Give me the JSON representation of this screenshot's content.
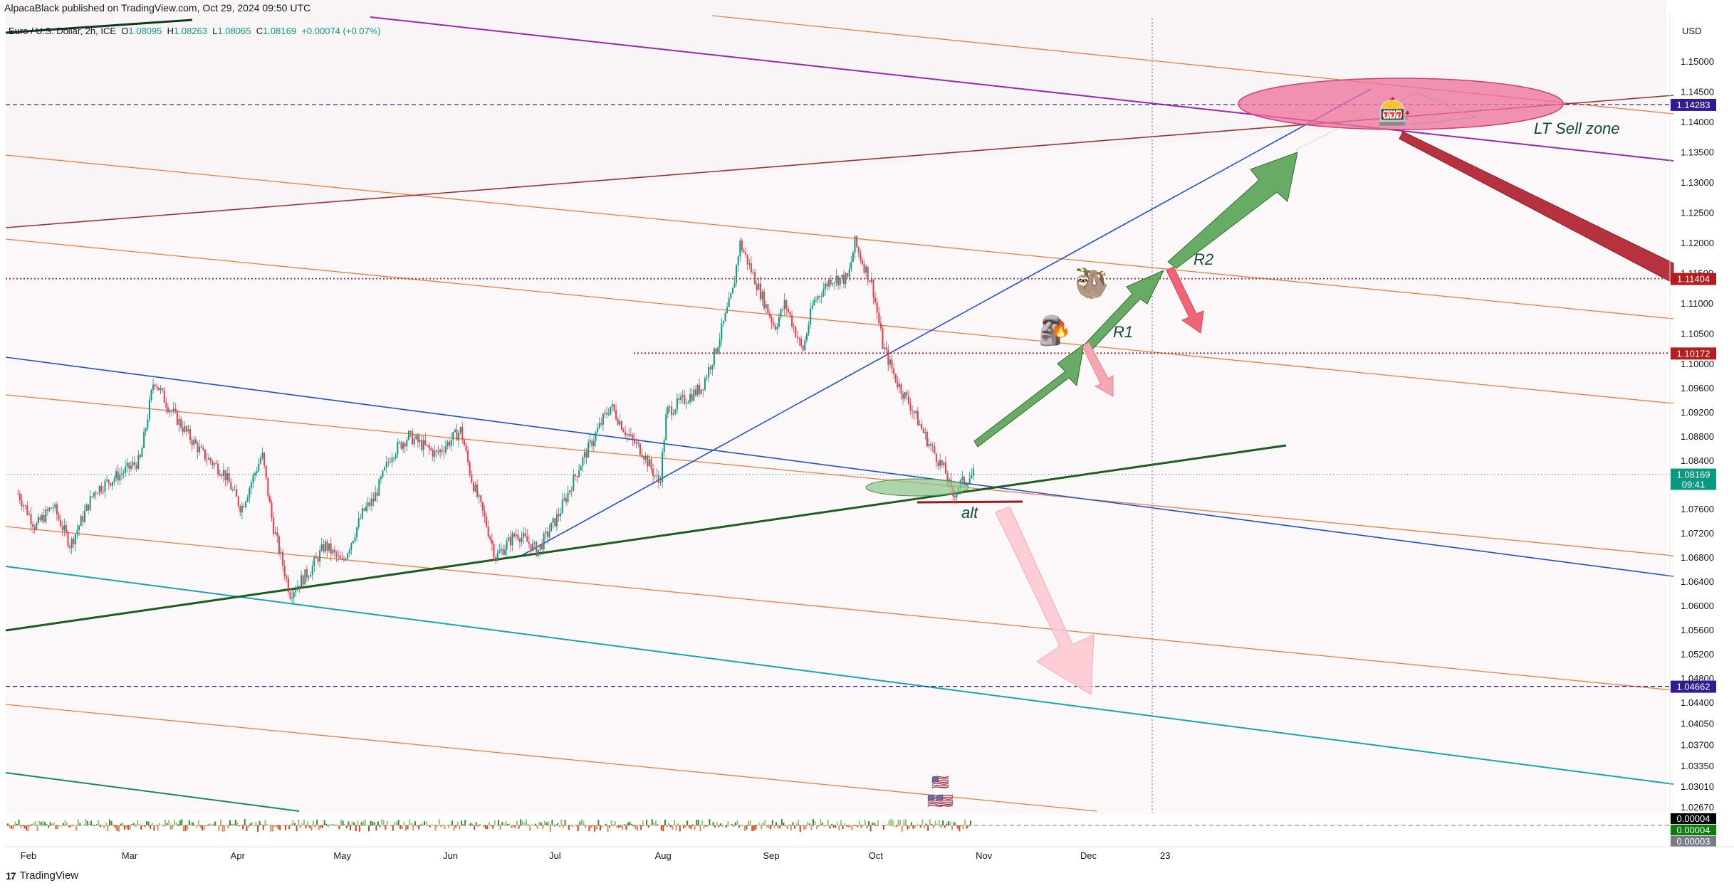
{
  "header": {
    "published": "AlpacaBlack published on TradingView.com, Oct 29, 2024 09:50 UTC",
    "symbol_name": "Euro / U.S. Dollar, 2h, ICE",
    "open_label": "O",
    "open_value": "1.08095",
    "high_label": "H",
    "high_value": "1.08263",
    "low_label": "L",
    "low_value": "1.08065",
    "close_label": "C",
    "close_value": "1.08169",
    "change": "+0.00074 (+0.07%)"
  },
  "footer": {
    "logo_mark": "17",
    "brand": "TradingView"
  },
  "chart_data": {
    "type": "candlestick",
    "currency": "USD",
    "y_range": [
      1.025,
      1.156
    ],
    "y_ticks": [
      "1.15000",
      "1.14500",
      "1.14000",
      "1.13500",
      "1.13000",
      "1.12500",
      "1.12000",
      "1.11500",
      "1.11000",
      "1.10500",
      "1.10000",
      "1.09600",
      "1.09200",
      "1.08800",
      "1.08400",
      "1.08000",
      "1.07600",
      "1.07200",
      "1.06800",
      "1.06400",
      "1.06000",
      "1.05600",
      "1.05200",
      "1.04800",
      "1.04400",
      "1.04050",
      "1.03700",
      "1.03350",
      "1.03010",
      "1.02670"
    ],
    "x_ticks": [
      "Feb",
      "Mar",
      "Apr",
      "May",
      "Jun",
      "Jul",
      "Aug",
      "Sep",
      "Oct",
      "Nov",
      "Dec",
      "23"
    ],
    "price_tags": [
      {
        "label": "1.14283",
        "price": 1.14283,
        "color": "#311b92"
      },
      {
        "label": "1.11404",
        "price": 1.11404,
        "color": "#b71c1c"
      },
      {
        "label": "1.10172",
        "price": 1.10172,
        "color": "#b71c1c"
      },
      {
        "label": "1.08169",
        "sub": "09:41",
        "price": 1.08169,
        "color": "#089981"
      },
      {
        "label": "1.04662",
        "price": 1.04662,
        "color": "#311b92"
      }
    ],
    "indicator_tags": [
      {
        "label": "0.00004",
        "color": "#000000"
      },
      {
        "label": "0.00004",
        "color": "#0a7d0a"
      },
      {
        "label": "0.00003",
        "color": "#787b86"
      }
    ],
    "path_points": [
      [
        "Jan 29",
        1.0785
      ],
      [
        "Feb 3",
        1.073
      ],
      [
        "Feb 8",
        1.0765
      ],
      [
        "Feb 13",
        1.07
      ],
      [
        "Feb 20",
        1.079
      ],
      [
        "Feb 28",
        1.082
      ],
      [
        "Mar 4",
        1.084
      ],
      [
        "Mar 8",
        1.0975
      ],
      [
        "Mar 12",
        1.093
      ],
      [
        "Mar 18",
        1.088
      ],
      [
        "Mar 22",
        1.085
      ],
      [
        "Mar 28",
        1.082
      ],
      [
        "Apr 2",
        1.076
      ],
      [
        "Apr 8",
        1.085
      ],
      [
        "Apr 11",
        1.0735
      ],
      [
        "Apr 16",
        1.062
      ],
      [
        "Apr 22",
        1.066
      ],
      [
        "Apr 26",
        1.07
      ],
      [
        "May 1",
        1.067
      ],
      [
        "May 7",
        1.0755
      ],
      [
        "May 10",
        1.0775
      ],
      [
        "May 15",
        1.085
      ],
      [
        "May 20",
        1.088
      ],
      [
        "May 28",
        1.085
      ],
      [
        "Jun 4",
        1.089
      ],
      [
        "Jun 7",
        1.081
      ],
      [
        "Jun 11",
        1.074
      ],
      [
        "Jun 14",
        1.068
      ],
      [
        "Jun 20",
        1.072
      ],
      [
        "Jun 26",
        1.069
      ],
      [
        "Jul 2",
        1.075
      ],
      [
        "Jul 8",
        1.083
      ],
      [
        "Jul 15",
        1.091
      ],
      [
        "Jul 17",
        1.093
      ],
      [
        "Jul 22",
        1.088
      ],
      [
        "Jul 26",
        1.0855
      ],
      [
        "Jul 31",
        1.08
      ],
      [
        "Aug 2",
        1.092
      ],
      [
        "Aug 7",
        1.094
      ],
      [
        "Aug 12",
        1.096
      ],
      [
        "Aug 16",
        1.102
      ],
      [
        "Aug 21",
        1.112
      ],
      [
        "Aug 23",
        1.12
      ],
      [
        "Aug 28",
        1.113
      ],
      [
        "Sep 2",
        1.106
      ],
      [
        "Sep 5",
        1.11
      ],
      [
        "Sep 10",
        1.102
      ],
      [
        "Sep 13",
        1.11
      ],
      [
        "Sep 18",
        1.114
      ],
      [
        "Sep 23",
        1.114
      ],
      [
        "Sep 25",
        1.12
      ],
      [
        "Sep 27",
        1.117
      ],
      [
        "Sep 30",
        1.113
      ],
      [
        "Oct 3",
        1.103
      ],
      [
        "Oct 7",
        1.097
      ],
      [
        "Oct 11",
        1.093
      ],
      [
        "Oct 16",
        1.087
      ],
      [
        "Oct 21",
        1.082
      ],
      [
        "Oct 23",
        1.078
      ],
      [
        "Oct 25",
        1.08
      ],
      [
        "Oct 29",
        1.0817
      ]
    ],
    "annotations": [
      {
        "text": "R1"
      },
      {
        "text": "R2"
      },
      {
        "text": "LT Sell zone"
      },
      {
        "text": "alt"
      }
    ],
    "emojis": {
      "sloth": "🦥",
      "moai": "🗿",
      "fire": "🔥",
      "slot": "🎰",
      "flag": "🇺🇸"
    }
  }
}
